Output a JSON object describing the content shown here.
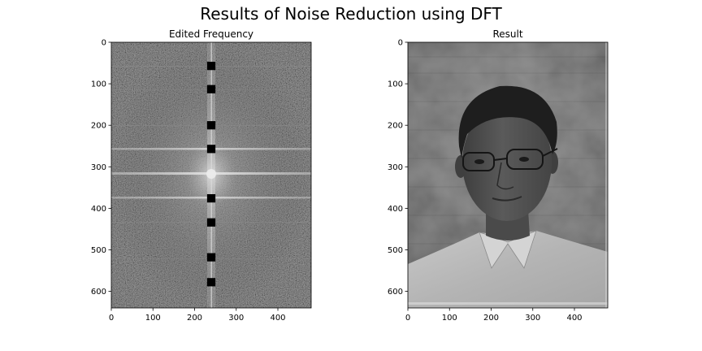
{
  "figure": {
    "suptitle": "Results of Noise Reduction using DFT"
  },
  "chart_data": [
    {
      "type": "heatmap",
      "title": "Edited Frequency",
      "description_kind": "log-magnitude DFT spectrum image with rectangular notch masks",
      "xlim": [
        0,
        480
      ],
      "ylim": [
        640,
        0
      ],
      "xticks": [
        0,
        100,
        200,
        300,
        400
      ],
      "yticks": [
        0,
        100,
        200,
        300,
        400,
        500,
        600
      ],
      "colormap": "gray",
      "notches": [
        {
          "x": 240,
          "y": 57
        },
        {
          "x": 240,
          "y": 113
        },
        {
          "x": 240,
          "y": 200
        },
        {
          "x": 240,
          "y": 257
        },
        {
          "x": 240,
          "y": 376
        },
        {
          "x": 240,
          "y": 434
        },
        {
          "x": 240,
          "y": 518
        },
        {
          "x": 240,
          "y": 578
        }
      ]
    },
    {
      "type": "heatmap",
      "title": "Result",
      "description_kind": "reconstructed grayscale photograph",
      "xlim": [
        0,
        480
      ],
      "ylim": [
        640,
        0
      ],
      "xticks": [
        0,
        100,
        200,
        300,
        400
      ],
      "yticks": [
        0,
        100,
        200,
        300,
        400,
        500,
        600
      ],
      "colormap": "gray"
    }
  ]
}
